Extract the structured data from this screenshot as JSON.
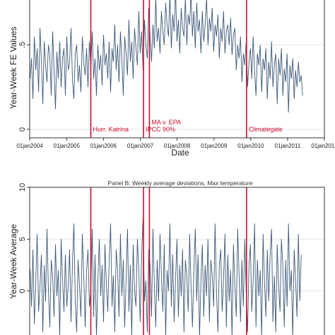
{
  "chart_data": [
    {
      "type": "line",
      "title": "",
      "xlabel": "Date",
      "ylabel": "Year-Week FE Values",
      "x_range": [
        "2004-01-01",
        "2012-01-01"
      ],
      "ylim": [
        -0.05,
        0.85
      ],
      "y_ticks": [
        {
          "value": 0,
          "label": "0"
        },
        {
          "value": 0.5,
          "label": ".5"
        }
      ],
      "x_ticks": [
        {
          "value": "2004-01-01",
          "label": "01jan2004"
        },
        {
          "value": "2005-01-01",
          "label": "01jan2005"
        },
        {
          "value": "2006-01-01",
          "label": "01jan2006"
        },
        {
          "value": "2007-01-01",
          "label": "01jan2007"
        },
        {
          "value": "2008-01-01",
          "label": "01jan2008"
        },
        {
          "value": "2009-01-01",
          "label": "01jan2009"
        },
        {
          "value": "2010-01-01",
          "label": "01jan2010"
        },
        {
          "value": "2011-01-01",
          "label": "01jan2011"
        },
        {
          "value": "2012-01-01",
          "label": "01jan2012"
        }
      ],
      "grid": "horizontal",
      "legend": "none",
      "series_color": "#3d5a7a",
      "event_color": "#c8102e",
      "events": [
        {
          "date": "2005-08-29",
          "label": "Hurr. Katrina"
        },
        {
          "date": "2007-02-02",
          "label": "IPCC 90%"
        },
        {
          "date": "2007-04-02",
          "label": "MA v. EPA"
        },
        {
          "date": "2009-11-20",
          "label": "Climategate"
        }
      ],
      "series": [
        {
          "x_start": "2004-01-05",
          "x_step_days": 14,
          "values": [
            0.3,
            0.42,
            0.18,
            0.55,
            0.35,
            0.48,
            0.22,
            0.6,
            0.4,
            0.15,
            0.52,
            0.38,
            0.28,
            0.5,
            0.44,
            0.2,
            0.58,
            0.36,
            0.12,
            0.46,
            0.3,
            0.52,
            0.25,
            0.42,
            0.48,
            0.2,
            0.55,
            0.35,
            0.4,
            0.6,
            0.3,
            0.18,
            0.45,
            0.5,
            0.28,
            0.38,
            0.22,
            0.55,
            0.4,
            0.32,
            0.48,
            0.25,
            0.52,
            0.36,
            0.58,
            0.3,
            0.42,
            0.2,
            0.5,
            0.35,
            0.44,
            0.26,
            0.56,
            0.38,
            0.45,
            0.3,
            0.52,
            0.22,
            0.48,
            0.4,
            0.62,
            0.35,
            0.5,
            0.28,
            0.58,
            0.42,
            0.2,
            0.55,
            0.45,
            0.32,
            0.65,
            0.4,
            0.52,
            0.3,
            0.6,
            0.48,
            0.38,
            0.7,
            0.45,
            0.58,
            0.35,
            0.65,
            0.5,
            0.42,
            0.72,
            0.55,
            0.4,
            0.62,
            0.48,
            0.78,
            0.52,
            0.6,
            0.45,
            0.7,
            0.58,
            0.5,
            0.75,
            0.62,
            0.55,
            0.8,
            0.48,
            0.68,
            0.58,
            0.82,
            0.52,
            0.65,
            0.45,
            0.72,
            0.6,
            0.55,
            0.78,
            0.5,
            0.68,
            0.62,
            0.8,
            0.55,
            0.7,
            0.48,
            0.75,
            0.58,
            0.65,
            0.45,
            0.7,
            0.52,
            0.62,
            0.78,
            0.5,
            0.66,
            0.58,
            0.72,
            0.46,
            0.62,
            0.55,
            0.68,
            0.42,
            0.6,
            0.52,
            0.7,
            0.45,
            0.58,
            0.62,
            0.5,
            0.66,
            0.44,
            0.56,
            0.6,
            0.35,
            0.5,
            0.42,
            0.55,
            0.28,
            0.45,
            0.38,
            0.52,
            0.25,
            0.4,
            0.48,
            0.3,
            0.55,
            0.35,
            0.2,
            0.45,
            0.38,
            0.5,
            0.22,
            0.42,
            0.35,
            0.48,
            0.18,
            0.4,
            0.3,
            0.52,
            0.25,
            0.38,
            0.45,
            0.15,
            0.42,
            0.32,
            0.48,
            0.2,
            0.36,
            0.28,
            0.45,
            0.1,
            0.38,
            0.3,
            0.42,
            0.18,
            0.35,
            0.25,
            0.4,
            0.28,
            0.32,
            0.2
          ]
        }
      ]
    },
    {
      "type": "line",
      "title": "Panel B: Weekly average deviations, Max temperature",
      "xlabel": "",
      "ylabel": "Year-Week Average",
      "ylim": [
        -5,
        10
      ],
      "y_ticks": [
        {
          "value": -5,
          "label": "-5"
        },
        {
          "value": 0,
          "label": "0"
        },
        {
          "value": 5,
          "label": "5"
        },
        {
          "value": 10,
          "label": "10"
        }
      ],
      "grid": "horizontal",
      "legend": "none",
      "series_color": "#3d5a7a",
      "event_color": "#c8102e",
      "series": [
        {
          "x_start": "2004-01-05",
          "x_step_days": 14,
          "values": [
            2.1,
            -1.5,
            4.0,
            -3.2,
            1.0,
            5.5,
            -2.0,
            0.5,
            3.5,
            -4.0,
            2.5,
            -1.0,
            6.0,
            0.0,
            -3.5,
            3.0,
            1.5,
            -2.5,
            4.5,
            -0.5,
            2.0,
            -4.5,
            5.0,
            1.0,
            -2.0,
            3.5,
            -1.5,
            0.5,
            4.0,
            -3.0,
            2.5,
            6.5,
            -1.0,
            -4.0,
            3.0,
            0.5,
            -2.5,
            5.5,
            1.5,
            -3.5,
            2.0,
            4.0,
            -1.5,
            0.0,
            6.0,
            -2.5,
            3.5,
            -4.5,
            1.0,
            5.0,
            -0.5,
            2.5,
            -3.0,
            4.5,
            0.5,
            -2.0,
            3.0,
            6.5,
            -1.5,
            1.5,
            -4.0,
            4.0,
            2.0,
            -2.5,
            5.5,
            -0.5,
            3.0,
            -3.5,
            1.0,
            6.0,
            -2.0,
            2.5,
            -4.5,
            4.5,
            0.0,
            -1.5,
            5.0,
            2.0,
            -3.0,
            3.5,
            7.0,
            -1.0,
            1.0,
            -4.0,
            4.0,
            2.5,
            -2.5,
            6.0,
            0.5,
            -3.5,
            3.0,
            -1.0,
            5.5,
            1.5,
            -2.0,
            4.5,
            -4.5,
            2.0,
            0.0,
            6.5,
            -1.5,
            3.5,
            -3.0,
            1.0,
            5.0,
            -2.5,
            2.5,
            -0.5,
            4.0,
            -4.0,
            3.0,
            1.5,
            -2.0,
            5.5,
            0.5,
            -3.5,
            2.0,
            6.0,
            -1.0,
            3.5,
            -4.5,
            1.0,
            4.5,
            -2.5,
            2.5,
            -0.5,
            5.0,
            -3.0,
            3.0,
            1.5,
            -1.5,
            6.5,
            0.0,
            -4.0,
            2.5,
            4.0,
            -2.0,
            1.0,
            5.5,
            -3.5,
            3.5,
            -1.0,
            2.0,
            -4.5,
            4.5,
            0.5,
            -2.5,
            6.0,
            1.5,
            -3.0,
            3.0,
            -1.5,
            5.0,
            0.0,
            -4.0,
            2.5,
            4.5,
            -2.0,
            1.0,
            6.5,
            -3.5,
            3.0,
            -0.5,
            2.0,
            -4.5,
            5.5,
            1.0,
            -2.5,
            4.0,
            -1.0,
            3.5,
            6.0,
            -3.0,
            1.5,
            -4.0,
            4.5,
            0.5,
            -2.0,
            5.0,
            2.5,
            -3.5,
            3.0,
            -1.5,
            6.5,
            0.0,
            2.0,
            -4.5,
            4.0,
            1.0,
            -2.5,
            5.5,
            -1.0,
            3.5
          ]
        }
      ]
    }
  ]
}
